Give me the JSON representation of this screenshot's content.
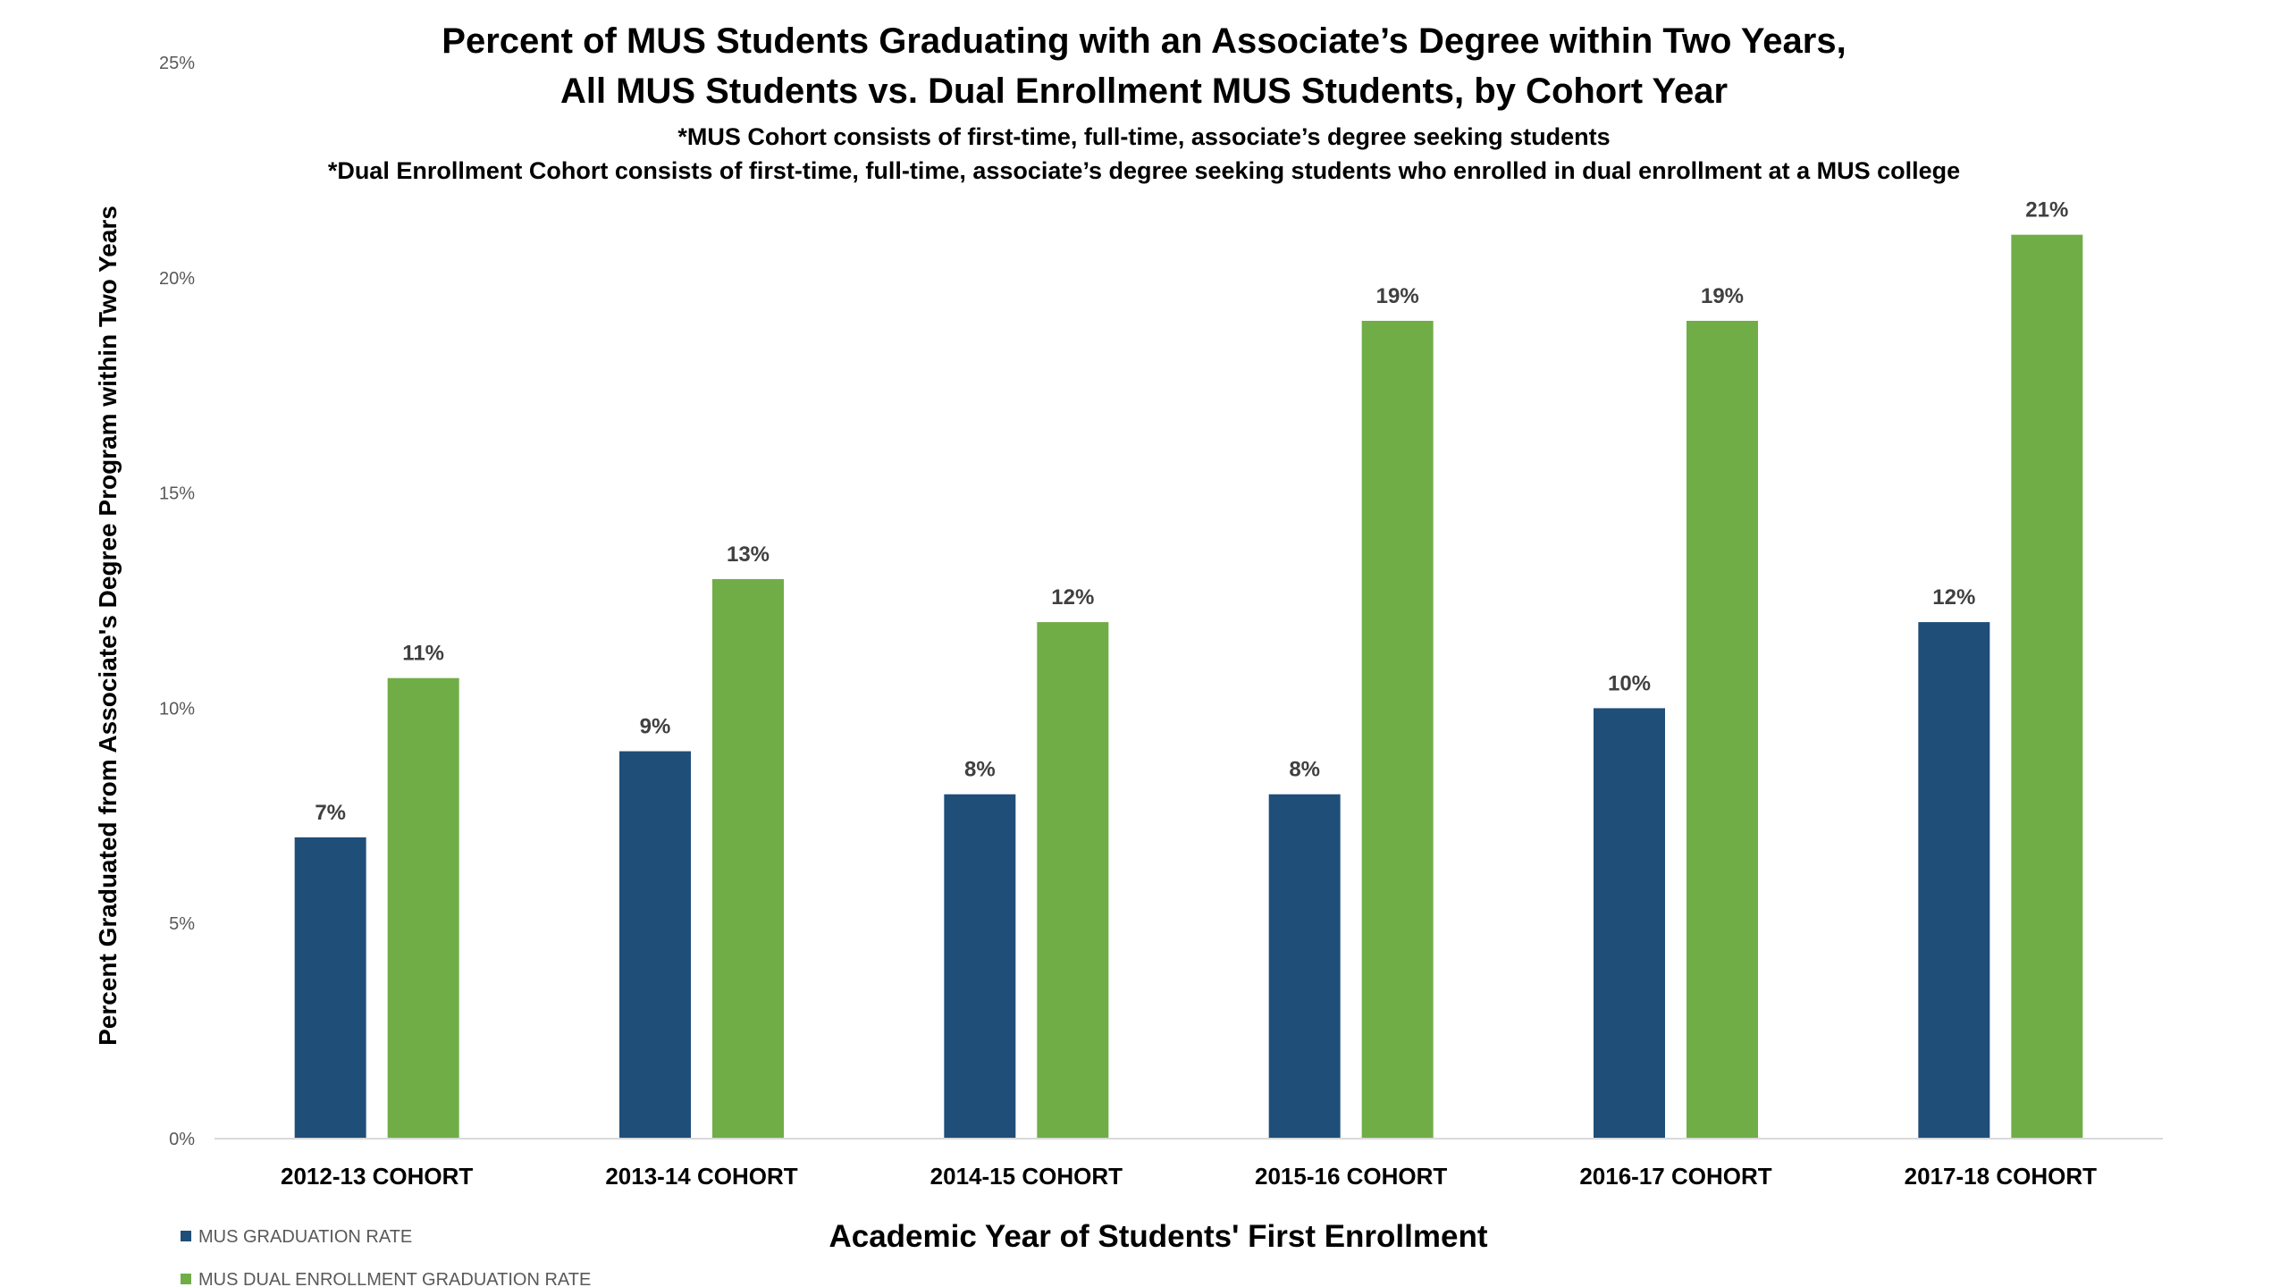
{
  "chart_data": {
    "type": "bar",
    "title": [
      "Percent of MUS Students Graduating with an Associate’s Degree within Two Years,",
      "All MUS Students vs. Dual Enrollment MUS Students, by Cohort Year"
    ],
    "subtitle": [
      "*MUS Cohort consists of first-time, full-time, associate’s degree seeking students",
      "*Dual Enrollment Cohort consists of first-time, full-time, associate’s degree seeking students who enrolled in dual enrollment at a MUS college"
    ],
    "xlabel": "Academic Year of Students' First Enrollment",
    "ylabel": "Percent  Graduated from Associate's Degree Program within Two Years",
    "ylim": [
      0,
      25
    ],
    "yticks": [
      "0%",
      "5%",
      "10%",
      "15%",
      "20%",
      "25%"
    ],
    "categories": [
      "2012-13 COHORT",
      "2013-14 COHORT",
      "2014-15 COHORT",
      "2015-16 COHORT",
      "2016-17 COHORT",
      "2017-18 COHORT"
    ],
    "series": [
      {
        "name": "MUS GRADUATION RATE",
        "color": "#1f4e79",
        "values": [
          7,
          9,
          8,
          8,
          10,
          12
        ],
        "labels": [
          "7%",
          "9%",
          "8%",
          "8%",
          "10%",
          "12%"
        ]
      },
      {
        "name": "MUS DUAL ENROLLMENT GRADUATION RATE",
        "color": "#70ad47",
        "values": [
          10.7,
          13,
          12,
          19,
          19,
          21
        ],
        "labels": [
          "11%",
          "13%",
          "12%",
          "19%",
          "19%",
          "21%"
        ]
      }
    ],
    "grid": false,
    "legend_position": "bottom-left"
  }
}
